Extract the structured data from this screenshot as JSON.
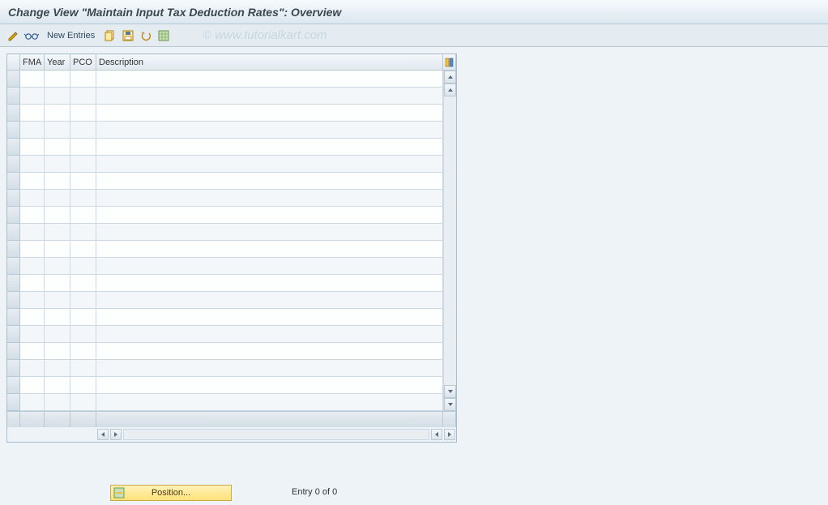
{
  "title": "Change View \"Maintain Input Tax Deduction Rates\": Overview",
  "watermark": "© www.tutorialkart.com",
  "toolbar": {
    "new_entries_label": "New Entries"
  },
  "table": {
    "columns": {
      "fma": "FMA",
      "year": "Year",
      "pco": "PCO",
      "description": "Description"
    },
    "row_count": 20
  },
  "footer": {
    "position_label": "Position...",
    "entry_text": "Entry 0 of 0"
  },
  "colors": {
    "title_gradient_top": "#f7fafc",
    "title_gradient_bottom": "#dbe7ef",
    "toolbar_bg": "#e4ecf2",
    "main_bg": "#eef3f7",
    "border": "#b8c8d4",
    "row_even": "#fdfefe",
    "row_odd": "#f3f7fa",
    "position_btn_top": "#fff2b8",
    "position_btn_bottom": "#ffe27a"
  }
}
